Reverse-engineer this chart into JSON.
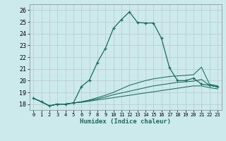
{
  "xlabel": "Humidex (Indice chaleur)",
  "background_color": "#cce9ec",
  "grid_color": "#b0d4d8",
  "line_color": "#1a6b60",
  "xlim": [
    -0.5,
    23.5
  ],
  "ylim": [
    17.5,
    26.5
  ],
  "xticks": [
    0,
    1,
    2,
    3,
    4,
    5,
    6,
    7,
    8,
    9,
    10,
    11,
    12,
    13,
    14,
    15,
    16,
    17,
    18,
    19,
    20,
    21,
    22,
    23
  ],
  "yticks": [
    18,
    19,
    20,
    21,
    22,
    23,
    24,
    25,
    26
  ],
  "series": [
    [
      18.5,
      18.2,
      17.85,
      18.0,
      18.0,
      18.1,
      19.5,
      20.05,
      21.55,
      22.75,
      24.45,
      25.2,
      25.85,
      24.95,
      24.9,
      24.9,
      23.6,
      21.1,
      20.0,
      20.0,
      20.2,
      19.7,
      19.6,
      19.5
    ],
    [
      18.5,
      18.2,
      17.85,
      18.0,
      18.0,
      18.1,
      18.2,
      18.35,
      18.55,
      18.75,
      19.0,
      19.3,
      19.6,
      19.8,
      20.0,
      20.15,
      20.25,
      20.35,
      20.4,
      20.45,
      20.5,
      21.15,
      19.7,
      19.55
    ],
    [
      18.5,
      18.2,
      17.85,
      18.0,
      18.0,
      18.1,
      18.2,
      18.3,
      18.45,
      18.6,
      18.8,
      18.95,
      19.1,
      19.25,
      19.4,
      19.55,
      19.65,
      19.75,
      19.85,
      19.9,
      19.95,
      20.1,
      19.6,
      19.45
    ],
    [
      18.5,
      18.2,
      17.85,
      18.0,
      18.0,
      18.1,
      18.15,
      18.25,
      18.35,
      18.45,
      18.55,
      18.65,
      18.75,
      18.85,
      18.95,
      19.05,
      19.15,
      19.25,
      19.35,
      19.45,
      19.55,
      19.55,
      19.4,
      19.3
    ]
  ]
}
